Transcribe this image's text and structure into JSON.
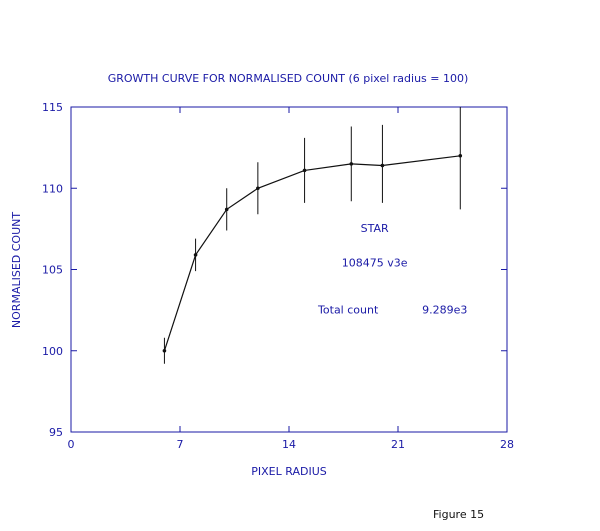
{
  "chart_data": {
    "type": "line",
    "title": "GROWTH CURVE FOR NORMALISED COUNT (6 pixel radius = 100)",
    "xlabel": "PIXEL RADIUS",
    "ylabel": "NORMALISED COUNT",
    "xlim": [
      0,
      28
    ],
    "ylim": [
      95,
      115
    ],
    "xticks": [
      0,
      7,
      14,
      21,
      28
    ],
    "yticks": [
      95,
      100,
      105,
      110,
      115
    ],
    "grid": false,
    "series": [
      {
        "x": [
          6,
          8,
          10,
          12,
          15,
          18,
          20,
          25
        ],
        "y": [
          100.0,
          105.9,
          108.7,
          110.0,
          111.1,
          111.5,
          111.4,
          112.0
        ],
        "err_low": [
          99.2,
          104.9,
          107.4,
          108.4,
          109.1,
          109.2,
          109.1,
          108.7
        ],
        "err_high": [
          100.8,
          106.9,
          110.0,
          111.6,
          113.1,
          113.8,
          113.9,
          115.0
        ]
      }
    ],
    "annotations": [
      {
        "text": "STAR",
        "x": 19.5,
        "y": 107.3
      },
      {
        "text": "108475 v3e",
        "x": 19.5,
        "y": 105.2
      },
      {
        "text": "Total count",
        "x": 17.8,
        "y": 102.3
      },
      {
        "text": "9.289e3",
        "x": 24.0,
        "y": 102.3
      }
    ]
  },
  "footer": {
    "figure_label": "Figure 15"
  },
  "colors": {
    "axis": "#1a1aa6",
    "text": "#1a1aa6",
    "line": "#111111"
  }
}
